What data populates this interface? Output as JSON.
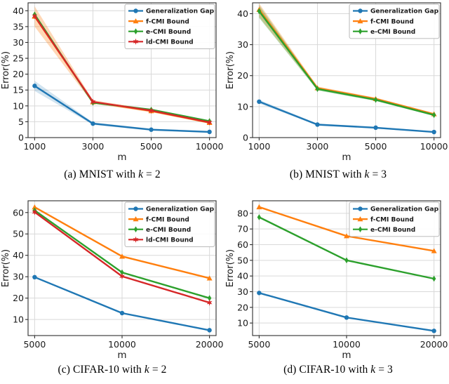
{
  "styles": {
    "grid_color": "#d9d9d9",
    "spine_color": "#2e2e2e",
    "tick_color": "#1a1a1a",
    "legend_border": "#b3b3b3",
    "legend_bg": "#ffffff",
    "series_colors": {
      "blue": "#1f77b4",
      "orange": "#ff7f0e",
      "green": "#2ca02c",
      "red": "#d62728"
    }
  },
  "captions": [
    {
      "pre": "(a) MNIST with ",
      "k": "k",
      "post": " = 2"
    },
    {
      "pre": "(b) MNIST with ",
      "k": "k",
      "post": " = 3"
    },
    {
      "pre": "(c) CIFAR-10 with ",
      "k": "k",
      "post": " = 2"
    },
    {
      "pre": "(d) CIFAR-10 with ",
      "k": "k",
      "post": " = 3"
    }
  ],
  "chart_data": [
    {
      "type": "line",
      "title": "(a) MNIST with k = 2",
      "x_categories": [
        "1000",
        "3000",
        "5000",
        "10000"
      ],
      "xlabel": "m",
      "ylabel": "Error(%)",
      "ylim": [
        0,
        42.5
      ],
      "yticks": [
        0,
        5,
        10,
        15,
        20,
        25,
        30,
        35,
        40
      ],
      "grid": true,
      "legend_position": "upper right",
      "series": [
        {
          "name": "Generalization Gap",
          "color": "#1f77b4",
          "marker": "circle",
          "values": [
            16.3,
            4.4,
            2.5,
            1.8
          ],
          "band": [
            [
              14.7,
              17.9
            ],
            [
              4.0,
              4.8
            ],
            [
              2.2,
              2.8
            ],
            [
              1.5,
              2.1
            ]
          ]
        },
        {
          "name": "f-CMI Bound",
          "color": "#ff7f0e",
          "marker": "triangle",
          "values": [
            38.2,
            11.2,
            8.4,
            4.7
          ],
          "band": [
            [
              35.0,
              41.4
            ],
            [
              10.7,
              11.8
            ],
            [
              8.0,
              8.9
            ],
            [
              4.4,
              5.1
            ]
          ]
        },
        {
          "name": "e-CMI Bound",
          "color": "#2ca02c",
          "marker": "diamond",
          "values": [
            38.8,
            11.0,
            8.8,
            5.2
          ]
        },
        {
          "name": "ld-CMI Bound",
          "color": "#d62728",
          "marker": "star",
          "values": [
            38.3,
            11.3,
            8.5,
            4.8
          ]
        }
      ]
    },
    {
      "type": "line",
      "title": "(b) MNIST with k = 3",
      "x_categories": [
        "1000",
        "3000",
        "5000",
        "10000"
      ],
      "xlabel": "m",
      "ylabel": "Error(%)",
      "ylim": [
        0,
        43.5
      ],
      "yticks": [
        0,
        10,
        20,
        30,
        40
      ],
      "grid": true,
      "legend_position": "upper right",
      "series": [
        {
          "name": "Generalization Gap",
          "color": "#1f77b4",
          "marker": "circle",
          "values": [
            11.6,
            4.2,
            3.2,
            1.8
          ],
          "band": [
            [
              11.0,
              12.2
            ],
            [
              3.9,
              4.5
            ],
            [
              2.9,
              3.5
            ],
            [
              1.6,
              2.0
            ]
          ]
        },
        {
          "name": "f-CMI Bound",
          "color": "#ff7f0e",
          "marker": "triangle",
          "values": [
            41.3,
            16.0,
            12.5,
            7.6
          ],
          "band": [
            [
              38.9,
              43.3
            ],
            [
              15.5,
              16.5
            ],
            [
              12.1,
              12.9
            ],
            [
              7.3,
              7.9
            ]
          ]
        },
        {
          "name": "e-CMI Bound",
          "color": "#2ca02c",
          "marker": "diamond",
          "values": [
            40.8,
            15.7,
            12.2,
            7.3
          ],
          "band": [
            [
              38.6,
              42.7
            ],
            [
              15.2,
              16.2
            ],
            [
              11.8,
              12.6
            ],
            [
              7.0,
              7.6
            ]
          ]
        }
      ]
    },
    {
      "type": "line",
      "title": "(c) CIFAR-10 with k = 2",
      "x_categories": [
        "5000",
        "10000",
        "20000"
      ],
      "xlabel": "m",
      "ylabel": "Error(%)",
      "ylim": [
        2.5,
        65.5
      ],
      "yticks": [
        10,
        20,
        30,
        40,
        50,
        60
      ],
      "grid": true,
      "legend_position": "upper right",
      "series": [
        {
          "name": "Generalization Gap",
          "color": "#1f77b4",
          "marker": "circle",
          "values": [
            29.8,
            13.0,
            5.0
          ]
        },
        {
          "name": "f-CMI Bound",
          "color": "#ff7f0e",
          "marker": "triangle",
          "values": [
            62.5,
            39.5,
            29.3
          ]
        },
        {
          "name": "e-CMI Bound",
          "color": "#2ca02c",
          "marker": "diamond",
          "values": [
            61.0,
            32.0,
            20.0
          ]
        },
        {
          "name": "ld-CMI Bound",
          "color": "#d62728",
          "marker": "star",
          "values": [
            60.2,
            30.2,
            17.9
          ]
        }
      ]
    },
    {
      "type": "line",
      "title": "(d) CIFAR-10 with k = 3",
      "x_categories": [
        "5000",
        "10000",
        "20000"
      ],
      "xlabel": "m",
      "ylabel": "Error(%)",
      "ylim": [
        2,
        88
      ],
      "yticks": [
        10,
        20,
        30,
        40,
        50,
        60,
        70,
        80
      ],
      "grid": true,
      "legend_position": "upper right",
      "series": [
        {
          "name": "Generalization Gap",
          "color": "#1f77b4",
          "marker": "circle",
          "values": [
            29.2,
            13.5,
            5.0
          ]
        },
        {
          "name": "f-CMI Bound",
          "color": "#ff7f0e",
          "marker": "triangle",
          "values": [
            84.0,
            65.5,
            56.0
          ]
        },
        {
          "name": "e-CMI Bound",
          "color": "#2ca02c",
          "marker": "diamond",
          "values": [
            77.5,
            50.0,
            38.3
          ]
        }
      ]
    }
  ]
}
